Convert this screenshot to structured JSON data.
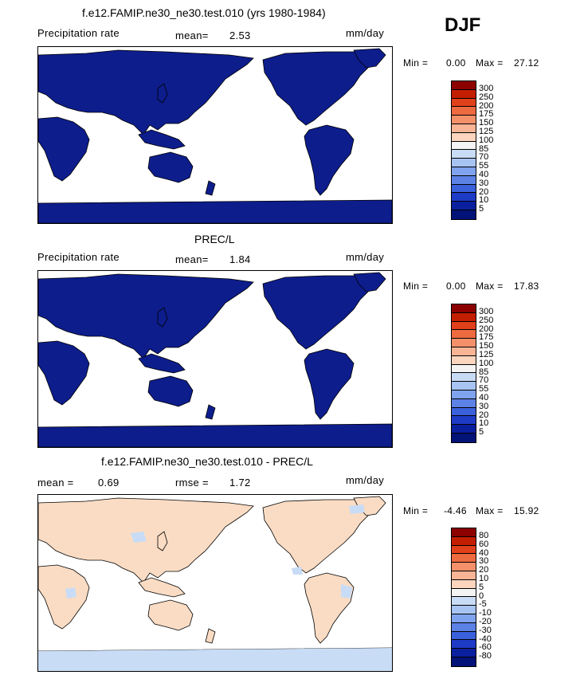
{
  "season": "DJF",
  "colors": {
    "ocean": "#ffffff",
    "land_dark": "#0d1d8c",
    "land_diff": "#fadcc4",
    "diff_cool": "#c8dcf5",
    "coast": "#000000"
  },
  "panels": [
    {
      "title": "f.e12.FAMIP.ne30_ne30.test.010 (yrs 1980-1984)",
      "left_label": "Precipitation rate",
      "stat_label": "mean=",
      "stat_value": "2.53",
      "units": "mm/day",
      "min_label": "Min =",
      "min_value": "0.00",
      "max_label": "Max =",
      "max_value": "27.12",
      "colorbar": {
        "levels": [
          "300",
          "250",
          "200",
          "175",
          "150",
          "125",
          "100",
          "85",
          "70",
          "55",
          "40",
          "30",
          "20",
          "10",
          "5"
        ],
        "colors": [
          "#8c0000",
          "#c41e00",
          "#e0401a",
          "#ee6a40",
          "#f4906a",
          "#f8b494",
          "#fbd5bd",
          "#f4f4f4",
          "#c9dcf5",
          "#a7c4f2",
          "#7fa3ee",
          "#5c82e6",
          "#3a60dc",
          "#1e3bc7",
          "#0a1f9e",
          "#031277"
        ]
      }
    },
    {
      "title": "PREC/L",
      "left_label": "Precipitation rate",
      "stat_label": "mean=",
      "stat_value": "1.84",
      "units": "mm/day",
      "min_label": "Min =",
      "min_value": "0.00",
      "max_label": "Max =",
      "max_value": "17.83",
      "colorbar": {
        "levels": [
          "300",
          "250",
          "200",
          "175",
          "150",
          "125",
          "100",
          "85",
          "70",
          "55",
          "40",
          "30",
          "20",
          "10",
          "5"
        ],
        "colors": [
          "#8c0000",
          "#c41e00",
          "#e0401a",
          "#ee6a40",
          "#f4906a",
          "#f8b494",
          "#fbd5bd",
          "#f4f4f4",
          "#c9dcf5",
          "#a7c4f2",
          "#7fa3ee",
          "#5c82e6",
          "#3a60dc",
          "#1e3bc7",
          "#0a1f9e",
          "#031277"
        ]
      }
    },
    {
      "title": "f.e12.FAMIP.ne30_ne30.test.010 - PREC/L",
      "left_label": "mean =",
      "left_value": "0.69",
      "stat_label": "rmse =",
      "stat_value": "1.72",
      "units": "mm/day",
      "min_label": "Min =",
      "min_value": "-4.46",
      "max_label": "Max =",
      "max_value": "15.92",
      "colorbar": {
        "levels": [
          "80",
          "60",
          "40",
          "30",
          "20",
          "10",
          "5",
          "0",
          "-5",
          "-10",
          "-20",
          "-30",
          "-40",
          "-60",
          "-80"
        ],
        "colors": [
          "#8c0000",
          "#c41e00",
          "#e0401a",
          "#ee6a40",
          "#f4906a",
          "#f8b494",
          "#fbd5bd",
          "#f4f4f4",
          "#c9dcf5",
          "#a7c4f2",
          "#7fa3ee",
          "#5c82e6",
          "#3a60dc",
          "#1e3bc7",
          "#0a1f9e",
          "#031277"
        ]
      }
    }
  ]
}
